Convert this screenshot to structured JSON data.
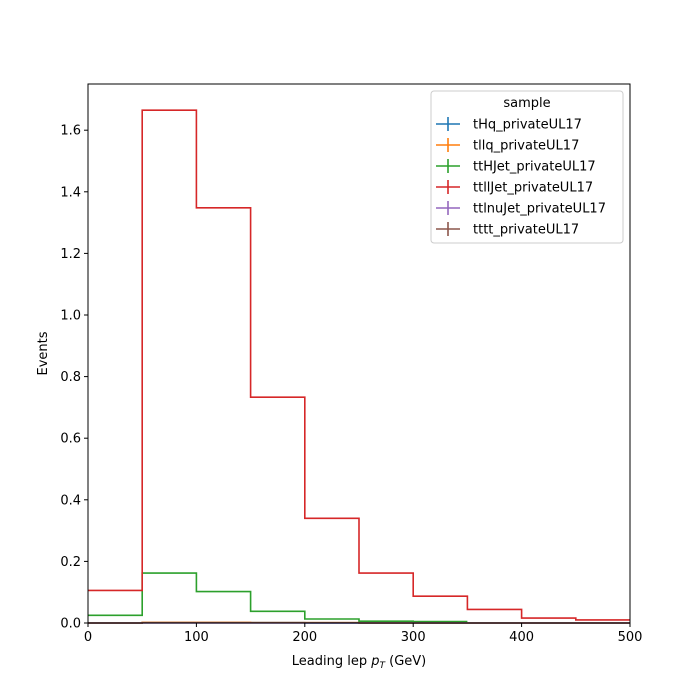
{
  "chart_data": {
    "type": "step",
    "xlabel_main": "Leading lep ",
    "xlabel_math": "p",
    "xlabel_sub": "T",
    "xlabel_unit": " (GeV)",
    "ylabel": "Events",
    "xlim": [
      0,
      500
    ],
    "ylim": [
      0,
      1.75
    ],
    "xticks": [
      0,
      100,
      200,
      300,
      400,
      500
    ],
    "yticks": [
      0.0,
      0.2,
      0.4,
      0.6,
      0.8,
      1.0,
      1.2,
      1.4,
      1.6
    ],
    "bin_edges": [
      0,
      50,
      100,
      150,
      200,
      250,
      300,
      350,
      400,
      450,
      500
    ],
    "legend_title": "sample",
    "legend_position": "top-right",
    "series": [
      {
        "name": "tHq_privateUL17",
        "color": "#1f77b4",
        "values": [
          0.0,
          0.001,
          0.001,
          0.001,
          0.0,
          0.0,
          0.0,
          0.0,
          0.0,
          0.0
        ]
      },
      {
        "name": "tllq_privateUL17",
        "color": "#ff7f0e",
        "values": [
          0.0,
          0.002,
          0.002,
          0.001,
          0.001,
          0.0,
          0.0,
          0.0,
          0.0,
          0.0
        ]
      },
      {
        "name": "ttHJet_privateUL17",
        "color": "#2ca02c",
        "values": [
          0.025,
          0.162,
          0.102,
          0.038,
          0.013,
          0.006,
          0.005,
          null,
          null,
          null
        ]
      },
      {
        "name": "ttllJet_privateUL17",
        "color": "#d62728",
        "values": [
          0.106,
          1.665,
          1.348,
          0.733,
          0.34,
          0.162,
          0.087,
          0.044,
          0.016,
          0.01
        ]
      },
      {
        "name": "ttlnuJet_privateUL17",
        "color": "#9467bd",
        "values": [
          0.0,
          0.0,
          0.0,
          0.0,
          0.0,
          0.0,
          0.0,
          0.0,
          0.0,
          0.0
        ]
      },
      {
        "name": "tttt_privateUL17",
        "color": "#8c564b",
        "values": [
          0.0,
          0.001,
          0.001,
          0.001,
          0.001,
          0.0,
          0.0,
          0.0,
          0.0,
          0.0
        ]
      }
    ]
  }
}
